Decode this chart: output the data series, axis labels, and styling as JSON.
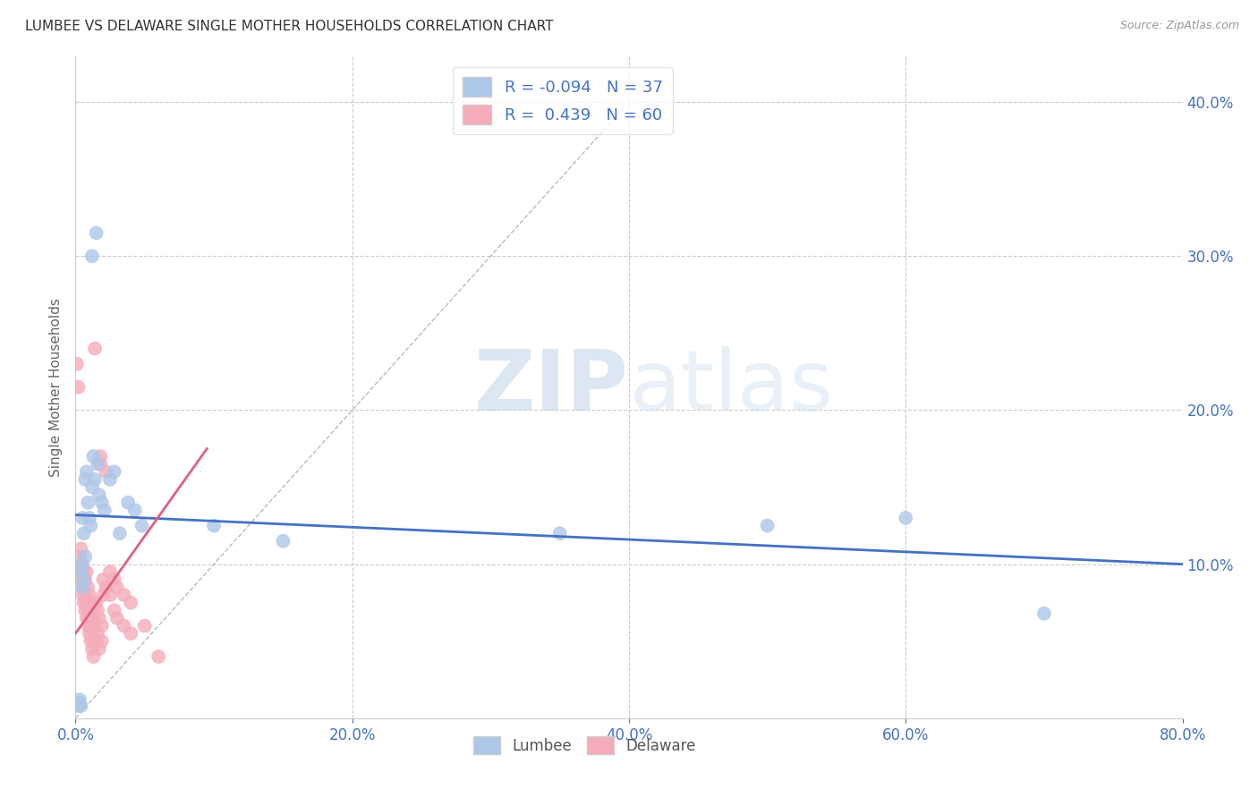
{
  "title": "LUMBEE VS DELAWARE SINGLE MOTHER HOUSEHOLDS CORRELATION CHART",
  "source": "Source: ZipAtlas.com",
  "ylabel": "Single Mother Households",
  "xlim": [
    0.0,
    0.8
  ],
  "ylim": [
    0.0,
    0.43
  ],
  "xticks": [
    0.0,
    0.2,
    0.4,
    0.6,
    0.8
  ],
  "yticks": [
    0.1,
    0.2,
    0.3,
    0.4
  ],
  "tick_color": "#4472C4",
  "background_color": "#ffffff",
  "watermark_zip": "ZIP",
  "watermark_atlas": "atlas",
  "legend_R_lumbee": "-0.094",
  "legend_N_lumbee": "37",
  "legend_R_delaware": "0.439",
  "legend_N_delaware": "60",
  "lumbee_color": "#AEC6E8",
  "delaware_color": "#F4ACBA",
  "lumbee_line_color": "#4472C4",
  "delaware_line_color": "#E06080",
  "lumbee_scatter": [
    [
      0.002,
      0.008
    ],
    [
      0.003,
      0.01
    ],
    [
      0.003,
      0.012
    ],
    [
      0.004,
      0.008
    ],
    [
      0.004,
      0.095
    ],
    [
      0.005,
      0.1
    ],
    [
      0.005,
      0.085
    ],
    [
      0.005,
      0.13
    ],
    [
      0.006,
      0.09
    ],
    [
      0.006,
      0.12
    ],
    [
      0.007,
      0.155
    ],
    [
      0.007,
      0.105
    ],
    [
      0.008,
      0.16
    ],
    [
      0.009,
      0.14
    ],
    [
      0.01,
      0.13
    ],
    [
      0.011,
      0.125
    ],
    [
      0.012,
      0.15
    ],
    [
      0.013,
      0.17
    ],
    [
      0.014,
      0.155
    ],
    [
      0.016,
      0.165
    ],
    [
      0.017,
      0.145
    ],
    [
      0.019,
      0.14
    ],
    [
      0.021,
      0.135
    ],
    [
      0.025,
      0.155
    ],
    [
      0.028,
      0.16
    ],
    [
      0.032,
      0.12
    ],
    [
      0.038,
      0.14
    ],
    [
      0.043,
      0.135
    ],
    [
      0.048,
      0.125
    ],
    [
      0.012,
      0.3
    ],
    [
      0.015,
      0.315
    ],
    [
      0.1,
      0.125
    ],
    [
      0.15,
      0.115
    ],
    [
      0.35,
      0.12
    ],
    [
      0.5,
      0.125
    ],
    [
      0.6,
      0.13
    ],
    [
      0.7,
      0.068
    ]
  ],
  "delaware_scatter": [
    [
      0.001,
      0.23
    ],
    [
      0.002,
      0.215
    ],
    [
      0.003,
      0.105
    ],
    [
      0.003,
      0.095
    ],
    [
      0.004,
      0.11
    ],
    [
      0.004,
      0.09
    ],
    [
      0.005,
      0.1
    ],
    [
      0.005,
      0.08
    ],
    [
      0.006,
      0.095
    ],
    [
      0.006,
      0.085
    ],
    [
      0.006,
      0.075
    ],
    [
      0.007,
      0.08
    ],
    [
      0.007,
      0.09
    ],
    [
      0.007,
      0.07
    ],
    [
      0.008,
      0.095
    ],
    [
      0.008,
      0.075
    ],
    [
      0.008,
      0.065
    ],
    [
      0.009,
      0.085
    ],
    [
      0.009,
      0.07
    ],
    [
      0.009,
      0.06
    ],
    [
      0.01,
      0.08
    ],
    [
      0.01,
      0.065
    ],
    [
      0.01,
      0.055
    ],
    [
      0.011,
      0.075
    ],
    [
      0.011,
      0.06
    ],
    [
      0.011,
      0.05
    ],
    [
      0.012,
      0.07
    ],
    [
      0.012,
      0.055
    ],
    [
      0.012,
      0.045
    ],
    [
      0.013,
      0.065
    ],
    [
      0.013,
      0.05
    ],
    [
      0.013,
      0.04
    ],
    [
      0.014,
      0.24
    ],
    [
      0.014,
      0.06
    ],
    [
      0.015,
      0.075
    ],
    [
      0.015,
      0.05
    ],
    [
      0.016,
      0.07
    ],
    [
      0.016,
      0.055
    ],
    [
      0.017,
      0.065
    ],
    [
      0.017,
      0.045
    ],
    [
      0.018,
      0.17
    ],
    [
      0.018,
      0.165
    ],
    [
      0.019,
      0.06
    ],
    [
      0.019,
      0.05
    ],
    [
      0.02,
      0.09
    ],
    [
      0.02,
      0.08
    ],
    [
      0.022,
      0.16
    ],
    [
      0.022,
      0.085
    ],
    [
      0.025,
      0.095
    ],
    [
      0.025,
      0.08
    ],
    [
      0.028,
      0.09
    ],
    [
      0.028,
      0.07
    ],
    [
      0.03,
      0.085
    ],
    [
      0.03,
      0.065
    ],
    [
      0.035,
      0.08
    ],
    [
      0.035,
      0.06
    ],
    [
      0.04,
      0.075
    ],
    [
      0.04,
      0.055
    ],
    [
      0.05,
      0.06
    ],
    [
      0.06,
      0.04
    ]
  ],
  "lumbee_trendline": [
    [
      0.0,
      0.132
    ],
    [
      0.8,
      0.1
    ]
  ],
  "delaware_trendline": [
    [
      0.0,
      0.055
    ],
    [
      0.095,
      0.175
    ]
  ],
  "diag_line": [
    [
      0.0,
      0.0
    ],
    [
      0.4,
      0.4
    ]
  ]
}
